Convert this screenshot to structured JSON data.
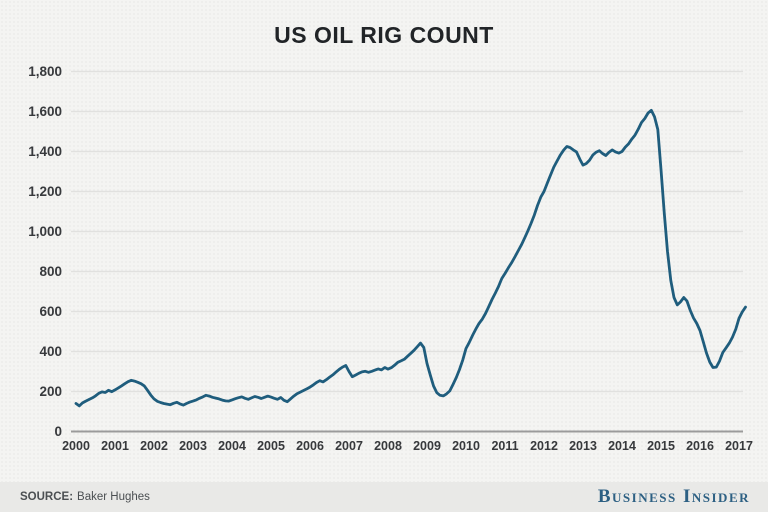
{
  "title": "US OIL RIG COUNT",
  "footer": {
    "source_label": "SOURCE:",
    "source_value": "Baker Hughes",
    "brand": "Business Insider"
  },
  "colors": {
    "line": "#1f5d7d",
    "grid": "#e1e1df",
    "zero_axis": "#9b9b9b",
    "axis_text": "#37393c",
    "background": "#f4f4f2",
    "footer_band": "#e9e9e7",
    "brand_blue": "#2d6083"
  },
  "chart_data": {
    "type": "line",
    "title": "US OIL RIG COUNT",
    "xlabel": "",
    "ylabel": "",
    "ylim": [
      0,
      1800
    ],
    "grid": "horizontal",
    "legend": "none",
    "y_tick_values": [
      0,
      200,
      400,
      600,
      800,
      1000,
      1200,
      1400,
      1600,
      1800
    ],
    "y_tick_labels": [
      "0",
      "200",
      "400",
      "600",
      "800",
      "1,000",
      "1,200",
      "1,400",
      "1,600",
      "1,800"
    ],
    "x_tick_labels": [
      "2000",
      "2001",
      "2002",
      "2003",
      "2004",
      "2005",
      "2006",
      "2007",
      "2008",
      "2009",
      "2010",
      "2011",
      "2012",
      "2013",
      "2014",
      "2015",
      "2016",
      "2017"
    ],
    "x_start_year": 2000,
    "points_per_year": 12,
    "series": [
      {
        "name": "US oil rig count",
        "values": [
          140,
          128,
          143,
          152,
          160,
          168,
          178,
          191,
          198,
          195,
          206,
          199,
          208,
          218,
          228,
          239,
          249,
          256,
          252,
          246,
          239,
          228,
          206,
          182,
          163,
          151,
          145,
          140,
          137,
          134,
          141,
          146,
          138,
          132,
          140,
          147,
          152,
          158,
          166,
          173,
          181,
          177,
          171,
          167,
          163,
          157,
          153,
          152,
          158,
          164,
          169,
          173,
          166,
          161,
          168,
          175,
          171,
          165,
          171,
          177,
          172,
          166,
          161,
          170,
          156,
          149,
          163,
          177,
          189,
          197,
          205,
          213,
          222,
          233,
          245,
          254,
          248,
          259,
          271,
          283,
          297,
          311,
          322,
          330,
          300,
          274,
          282,
          291,
          298,
          301,
          296,
          301,
          307,
          313,
          308,
          320,
          312,
          319,
          331,
          346,
          353,
          361,
          376,
          391,
          406,
          424,
          442,
          420,
          340,
          282,
          228,
          194,
          181,
          178,
          188,
          203,
          235,
          270,
          310,
          358,
          415,
          446,
          480,
          512,
          540,
          562,
          590,
          625,
          660,
          692,
          725,
          765,
          790,
          818,
          843,
          872,
          902,
          932,
          966,
          1002,
          1040,
          1082,
          1130,
          1172,
          1200,
          1242,
          1282,
          1322,
          1352,
          1382,
          1406,
          1425,
          1420,
          1408,
          1398,
          1362,
          1332,
          1340,
          1356,
          1382,
          1396,
          1404,
          1390,
          1380,
          1396,
          1408,
          1398,
          1392,
          1400,
          1422,
          1438,
          1462,
          1482,
          1512,
          1545,
          1565,
          1592,
          1606,
          1574,
          1510,
          1310,
          1090,
          900,
          755,
          670,
          633,
          648,
          670,
          652,
          605,
          568,
          540,
          505,
          448,
          392,
          347,
          320,
          322,
          352,
          395,
          418,
          442,
          472,
          512,
          566,
          598,
          622
        ]
      }
    ]
  }
}
